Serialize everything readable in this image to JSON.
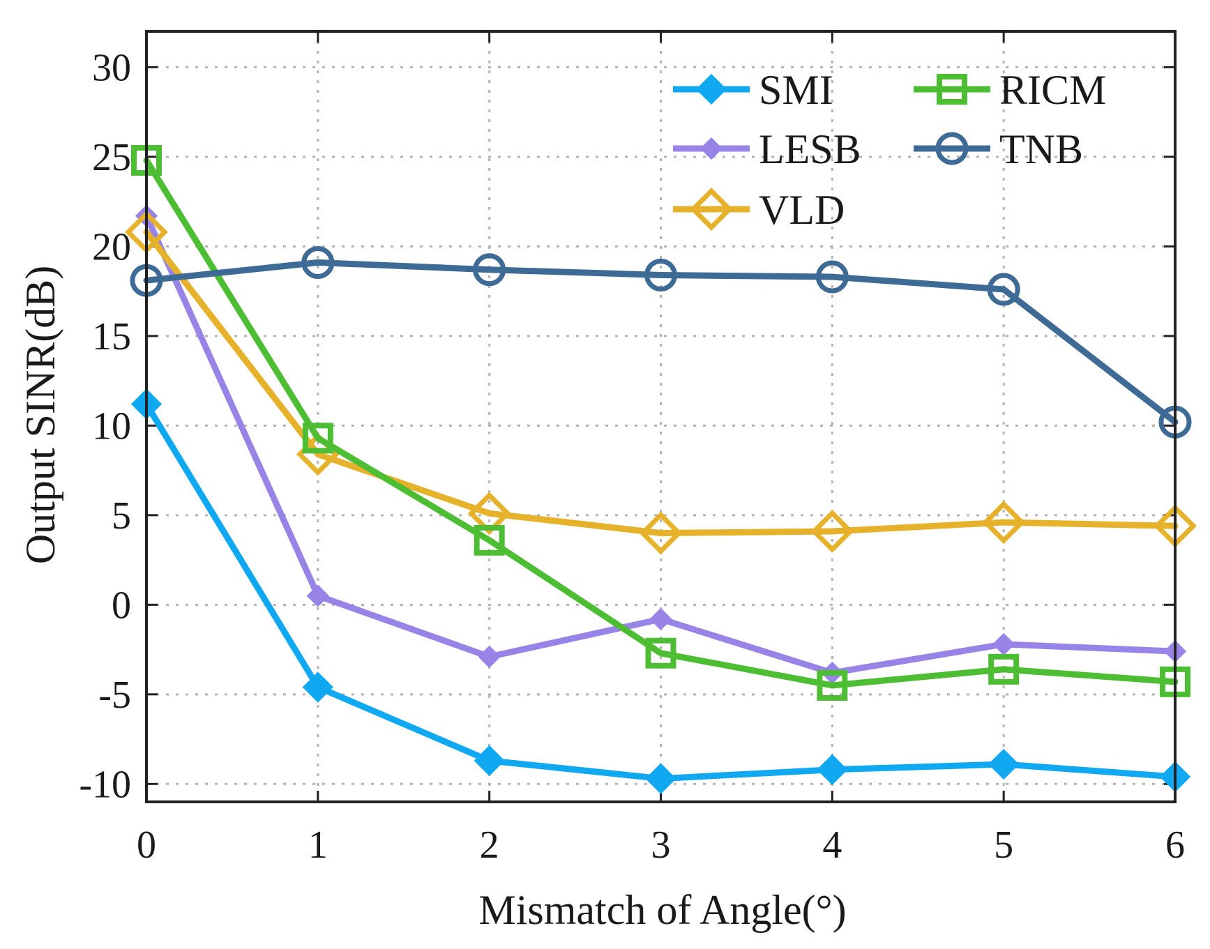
{
  "chart_data": {
    "type": "line",
    "xlabel": "Mismatch of Angle(°)",
    "ylabel": "Output SINR(dB)",
    "xlim": [
      0,
      6
    ],
    "ylim": [
      -11,
      32
    ],
    "xticks": [
      "0",
      "1",
      "2",
      "3",
      "4",
      "5",
      "6"
    ],
    "yticks": [
      "-10",
      "-5",
      "0",
      "5",
      "10",
      "15",
      "20",
      "25",
      "30"
    ],
    "grid": true,
    "legend_position": "top-right",
    "x": [
      0,
      1,
      2,
      3,
      4,
      5,
      6
    ],
    "series": [
      {
        "name": "SMI",
        "color": "#10a8f0",
        "marker": "diamond-filled",
        "values": [
          11.2,
          -4.6,
          -8.7,
          -9.7,
          -9.2,
          -8.9,
          -9.6
        ]
      },
      {
        "name": "LESB",
        "color": "#9884e6",
        "marker": "diamond-small-filled",
        "values": [
          21.7,
          0.5,
          -2.9,
          -0.8,
          -3.8,
          -2.2,
          -2.6
        ]
      },
      {
        "name": "VLD",
        "color": "#e6b22c",
        "marker": "diamond-open",
        "values": [
          20.8,
          8.4,
          5.1,
          4.0,
          4.1,
          4.6,
          4.4
        ]
      },
      {
        "name": "RICM",
        "color": "#4dbd33",
        "marker": "square-open",
        "values": [
          24.8,
          9.3,
          3.6,
          -2.7,
          -4.5,
          -3.6,
          -4.3
        ]
      },
      {
        "name": "TNB",
        "color": "#3e6b96",
        "marker": "circle-open",
        "values": [
          18.1,
          19.1,
          18.7,
          18.4,
          18.3,
          17.6,
          10.2
        ]
      }
    ]
  }
}
